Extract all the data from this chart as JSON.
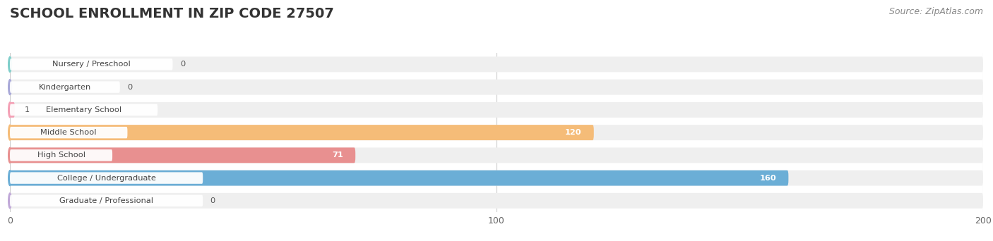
{
  "title": "SCHOOL ENROLLMENT IN ZIP CODE 27507",
  "source": "Source: ZipAtlas.com",
  "categories": [
    "Nursery / Preschool",
    "Kindergarten",
    "Elementary School",
    "Middle School",
    "High School",
    "College / Undergraduate",
    "Graduate / Professional"
  ],
  "values": [
    0,
    0,
    1,
    120,
    71,
    160,
    0
  ],
  "bar_colors": [
    "#7ececa",
    "#a8a8d8",
    "#f4a0b5",
    "#f5bc78",
    "#e89090",
    "#6baed6",
    "#c0a8d8"
  ],
  "bar_bg_color": "#efefef",
  "xlim": [
    0,
    200
  ],
  "xticks": [
    0,
    100,
    200
  ],
  "background_color": "#ffffff",
  "title_fontsize": 14,
  "source_fontsize": 9,
  "bar_height": 0.68
}
